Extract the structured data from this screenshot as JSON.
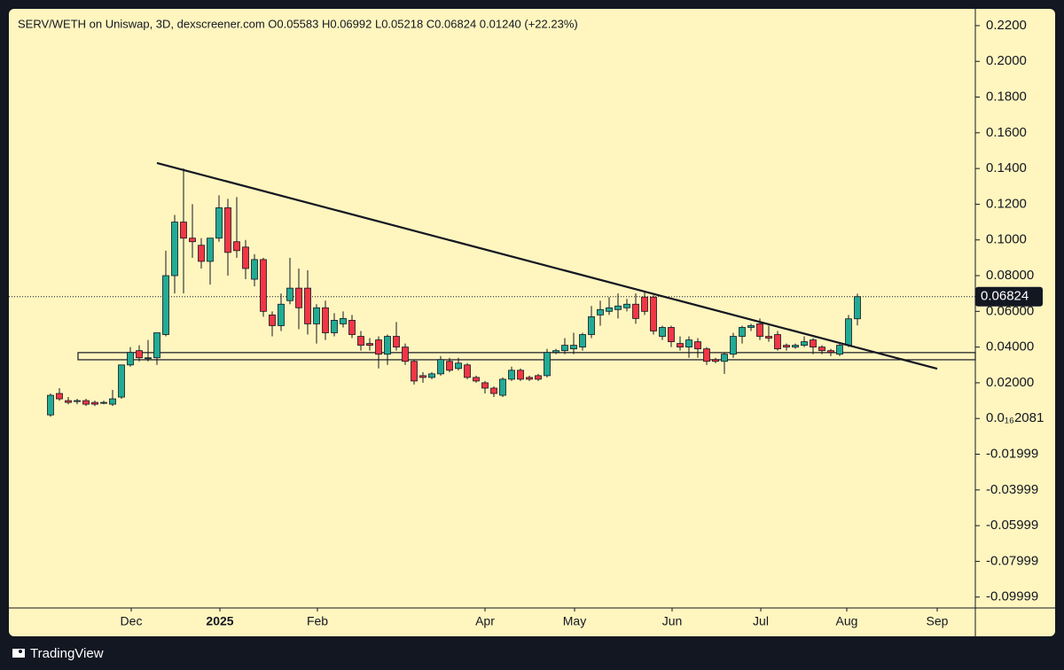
{
  "chart_data": {
    "type": "candlestick",
    "title": "SERV/WETH on Uniswap, 3D, dexscreener.com  O0.05583  H0.06992  L0.05218  C0.06824  0.01240 (+22.23%)",
    "footer": "TradingView",
    "up_color": "#22ab94",
    "down_color": "#f23645",
    "background": "#fff5bf",
    "open": [
      0.002,
      0.014,
      0.01,
      0.01,
      0.01,
      0.009,
      0.009,
      0.008,
      0.012,
      0.03,
      0.038,
      0.034,
      0.034,
      0.047,
      0.08,
      0.11,
      0.101,
      0.097,
      0.088,
      0.101,
      0.118,
      0.099,
      0.096,
      0.078,
      0.089,
      0.058,
      0.052,
      0.066,
      0.073,
      0.073,
      0.053,
      0.062,
      0.048,
      0.053,
      0.055,
      0.046,
      0.042,
      0.044,
      0.036,
      0.046,
      0.04,
      0.032,
      0.024,
      0.023,
      0.025,
      0.032,
      0.028,
      0.03,
      0.023,
      0.02,
      0.017,
      0.013,
      0.022,
      0.027,
      0.023,
      0.024,
      0.024,
      0.037,
      0.038,
      0.039,
      0.04,
      0.047,
      0.058,
      0.06,
      0.061,
      0.062,
      0.064,
      0.068,
      0.068,
      0.046,
      0.051,
      0.042,
      0.04,
      0.043,
      0.039,
      0.033,
      0.032,
      0.036,
      0.046,
      0.051,
      0.053,
      0.046,
      0.047,
      0.041,
      0.04,
      0.041,
      0.044,
      0.04,
      0.038,
      0.036,
      0.041,
      0.05583
    ],
    "high": [
      0.014,
      0.017,
      0.012,
      0.011,
      0.011,
      0.01,
      0.01,
      0.016,
      0.03,
      0.04,
      0.041,
      0.044,
      0.048,
      0.094,
      0.114,
      0.14,
      0.12,
      0.101,
      0.101,
      0.125,
      0.123,
      0.124,
      0.1,
      0.092,
      0.09,
      0.06,
      0.07,
      0.09,
      0.084,
      0.083,
      0.064,
      0.066,
      0.059,
      0.06,
      0.058,
      0.049,
      0.045,
      0.046,
      0.047,
      0.054,
      0.042,
      0.033,
      0.026,
      0.026,
      0.035,
      0.034,
      0.034,
      0.031,
      0.024,
      0.021,
      0.018,
      0.023,
      0.029,
      0.028,
      0.024,
      0.025,
      0.039,
      0.039,
      0.045,
      0.048,
      0.048,
      0.063,
      0.066,
      0.068,
      0.07,
      0.067,
      0.07,
      0.071,
      0.069,
      0.052,
      0.052,
      0.046,
      0.046,
      0.045,
      0.04,
      0.034,
      0.037,
      0.048,
      0.052,
      0.053,
      0.056,
      0.052,
      0.049,
      0.042,
      0.042,
      0.046,
      0.045,
      0.041,
      0.039,
      0.042,
      0.058,
      0.06992
    ],
    "low": [
      0.001,
      0.01,
      0.008,
      0.008,
      0.007,
      0.007,
      0.008,
      0.007,
      0.011,
      0.029,
      0.032,
      0.032,
      0.03,
      0.046,
      0.07,
      0.07,
      0.09,
      0.084,
      0.075,
      0.099,
      0.08,
      0.09,
      0.078,
      0.074,
      0.057,
      0.046,
      0.049,
      0.064,
      0.05,
      0.047,
      0.042,
      0.044,
      0.046,
      0.051,
      0.045,
      0.038,
      0.038,
      0.028,
      0.03,
      0.038,
      0.03,
      0.019,
      0.02,
      0.022,
      0.024,
      0.026,
      0.027,
      0.022,
      0.02,
      0.014,
      0.012,
      0.012,
      0.021,
      0.021,
      0.021,
      0.021,
      0.023,
      0.036,
      0.036,
      0.036,
      0.038,
      0.045,
      0.052,
      0.058,
      0.056,
      0.06,
      0.053,
      0.058,
      0.047,
      0.044,
      0.04,
      0.038,
      0.034,
      0.034,
      0.03,
      0.031,
      0.025,
      0.034,
      0.042,
      0.049,
      0.044,
      0.043,
      0.038,
      0.038,
      0.039,
      0.04,
      0.036,
      0.036,
      0.035,
      0.035,
      0.04,
      0.05218
    ],
    "close": [
      0.013,
      0.011,
      0.009,
      0.01,
      0.008,
      0.008,
      0.009,
      0.011,
      0.03,
      0.037,
      0.034,
      0.034,
      0.048,
      0.08,
      0.11,
      0.101,
      0.099,
      0.088,
      0.101,
      0.118,
      0.093,
      0.094,
      0.084,
      0.089,
      0.06,
      0.052,
      0.064,
      0.073,
      0.062,
      0.053,
      0.062,
      0.048,
      0.055,
      0.056,
      0.047,
      0.041,
      0.041,
      0.036,
      0.046,
      0.04,
      0.032,
      0.021,
      0.023,
      0.025,
      0.033,
      0.027,
      0.031,
      0.023,
      0.021,
      0.017,
      0.014,
      0.022,
      0.027,
      0.022,
      0.022,
      0.022,
      0.037,
      0.038,
      0.041,
      0.041,
      0.047,
      0.057,
      0.061,
      0.062,
      0.063,
      0.064,
      0.056,
      0.06,
      0.049,
      0.051,
      0.043,
      0.04,
      0.044,
      0.039,
      0.032,
      0.032,
      0.036,
      0.046,
      0.051,
      0.052,
      0.046,
      0.045,
      0.039,
      0.04,
      0.041,
      0.043,
      0.04,
      0.038,
      0.037,
      0.041,
      0.05583,
      0.06824
    ],
    "last_price": 0.06824,
    "trendline": {
      "x": [
        12,
        100
      ],
      "y": [
        0.1431,
        0.0279
      ]
    },
    "support_zone": {
      "x": 3.1,
      "y": [
        0.0329,
        0.0369
      ]
    },
    "xlim": [
      -4.7,
      104.3
    ],
    "xticks": [
      {
        "value": 9.1,
        "label": "Dec"
      },
      {
        "value": 19.1,
        "label": "2025"
      },
      {
        "value": 30.1,
        "label": "Feb"
      },
      {
        "value": 49,
        "label": "Apr"
      },
      {
        "value": 59.1,
        "label": "May"
      },
      {
        "value": 70.1,
        "label": "Jun"
      },
      {
        "value": 80.1,
        "label": "Jul"
      },
      {
        "value": 89.8,
        "label": "Aug"
      },
      {
        "value": 100,
        "label": "Sep"
      }
    ],
    "ylim": [
      -0.1061,
      0.2294
    ],
    "yticks": [
      {
        "value": 0.22,
        "label": "0.2200"
      },
      {
        "value": 0.2,
        "label": "0.2000"
      },
      {
        "value": 0.18,
        "label": "0.1800"
      },
      {
        "value": 0.16,
        "label": "0.1600"
      },
      {
        "value": 0.14,
        "label": "0.1400"
      },
      {
        "value": 0.12,
        "label": "0.1200"
      },
      {
        "value": 0.1,
        "label": "0.1000"
      },
      {
        "value": 0.08,
        "label": "0.08000"
      },
      {
        "value": 0.06,
        "label": "0.06000"
      },
      {
        "value": 0.04,
        "label": "0.04000"
      },
      {
        "value": 0.02,
        "label": "0.02000"
      },
      {
        "value": 0,
        "label": "0.0₁₆2081"
      },
      {
        "value": -0.02,
        "label": "-0.01999"
      },
      {
        "value": -0.04,
        "label": "-0.03999"
      },
      {
        "value": -0.06,
        "label": "-0.05999"
      },
      {
        "value": -0.08,
        "label": "-0.07999"
      },
      {
        "value": -0.1,
        "label": "-0.09999"
      }
    ]
  }
}
